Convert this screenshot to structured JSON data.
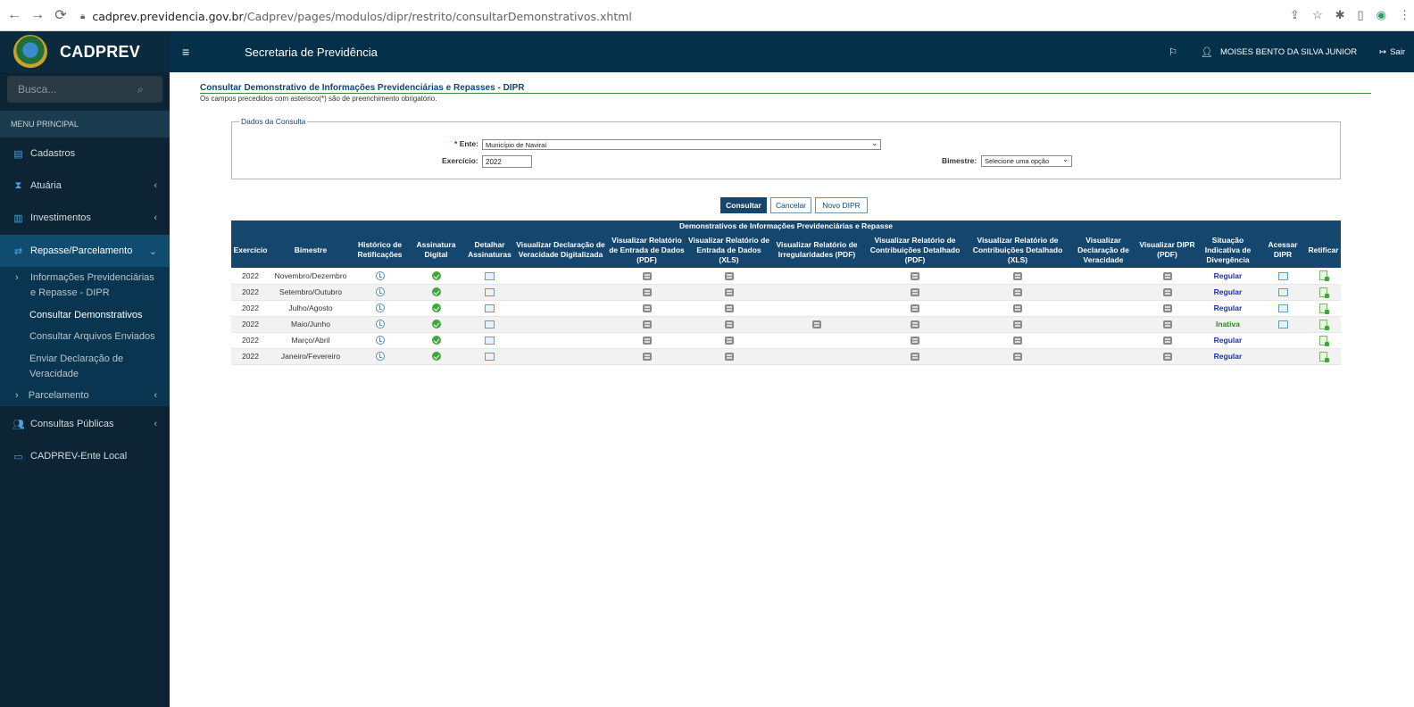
{
  "browser": {
    "url_host": "cadprev.previdencia.gov.br",
    "url_path": "/Cadprev/pages/modulos/dipr/restrito/consultarDemonstrativos.xhtml"
  },
  "header": {
    "logo_text": "CADPREV",
    "app_title": "Secretaria de Previdência",
    "user_name": "MOISES BENTO DA SILVA JUNIOR",
    "logout_label": "Sair"
  },
  "sidebar": {
    "search_placeholder": "Busca...",
    "menu_header": "MENU PRINCIPAL",
    "items": [
      {
        "label": "Cadastros"
      },
      {
        "label": "Atuária"
      },
      {
        "label": "Investimentos"
      },
      {
        "label": "Repasse/Parcelamento"
      },
      {
        "label": "Consultas Públicas"
      },
      {
        "label": "CADPREV-Ente Local"
      }
    ],
    "submenu_group": "Informações Previdenciárias e Repasse - DIPR",
    "submenu_items": [
      {
        "label": "Consultar Demonstrativos"
      },
      {
        "label": "Consultar Arquivos Enviados"
      },
      {
        "label": "Enviar Declaração de Veracidade"
      }
    ],
    "parcelamento_label": "Parcelamento"
  },
  "main": {
    "page_title": "Consultar Demonstrativo de Informações Previdenciárias e Repasses - DIPR",
    "hint": "Os campos precedidos com asterisco(*) são de preenchimento obrigatório.",
    "fieldset_legend": "Dados da Consulta",
    "ente_label": "Ente:",
    "ente_required": "*",
    "ente_value": "Município de Naviraí",
    "exercicio_label": "Exercício:",
    "exercicio_value": "2022",
    "bimestre_label": "Bimestre:",
    "bimestre_value": "Selecione uma opção",
    "buttons": {
      "consultar": "Consultar",
      "cancelar": "Cancelar",
      "novo": "Novo DIPR"
    }
  },
  "table": {
    "caption": "Demonstrativos de Informações Previdenciárias e Repasse",
    "headers": [
      "Exercício",
      "Bimestre",
      "Histórico de Retificações",
      "Assinatura Digital",
      "Detalhar Assinaturas",
      "Visualizar Declaração de Veracidade Digitalizada",
      "Visualizar Relatório de Entrada de Dados (PDF)",
      "Visualizar Relatório de Entrada de Dados (XLS)",
      "Visualizar Relatório de Irregularidades (PDF)",
      "Visualizar Relatório de Contribuições Detalhado (PDF)",
      "Visualizar Relatório de Contribuições Detalhado (XLS)",
      "Visualizar Declaração de Veracidade",
      "Visualizar DIPR (PDF)",
      "Situação Indicativa de Divergência",
      "Acessar DIPR",
      "Retificar"
    ],
    "rows": [
      {
        "exercicio": "2022",
        "bimestre": "Novembro/Dezembro",
        "irregularidades": false,
        "situacao": "Regular",
        "acessar": true
      },
      {
        "exercicio": "2022",
        "bimestre": "Setembro/Outubro",
        "irregularidades": false,
        "situacao": "Regular",
        "acessar": true
      },
      {
        "exercicio": "2022",
        "bimestre": "Julho/Agosto",
        "irregularidades": false,
        "situacao": "Regular",
        "acessar": true
      },
      {
        "exercicio": "2022",
        "bimestre": "Maio/Junho",
        "irregularidades": true,
        "situacao": "Inativa",
        "acessar": true
      },
      {
        "exercicio": "2022",
        "bimestre": "Março/Abril",
        "irregularidades": false,
        "situacao": "Regular",
        "acessar": false
      },
      {
        "exercicio": "2022",
        "bimestre": "Janeiro/Fevereiro",
        "irregularidades": false,
        "situacao": "Regular",
        "acessar": false
      }
    ]
  },
  "colors": {
    "header_bg": "#04304a",
    "sidebar_bg": "#0c2433",
    "table_header": "#14466e",
    "regular": "#1a2fb3",
    "inativa": "#2c8a1e"
  },
  "icons": {
    "history": "clock-icon",
    "signature": "check-circle-icon",
    "detail": "magnifier-doc-icon",
    "report": "printer-icon",
    "access": "magnifier-doc-icon",
    "retify": "edit-doc-icon"
  }
}
